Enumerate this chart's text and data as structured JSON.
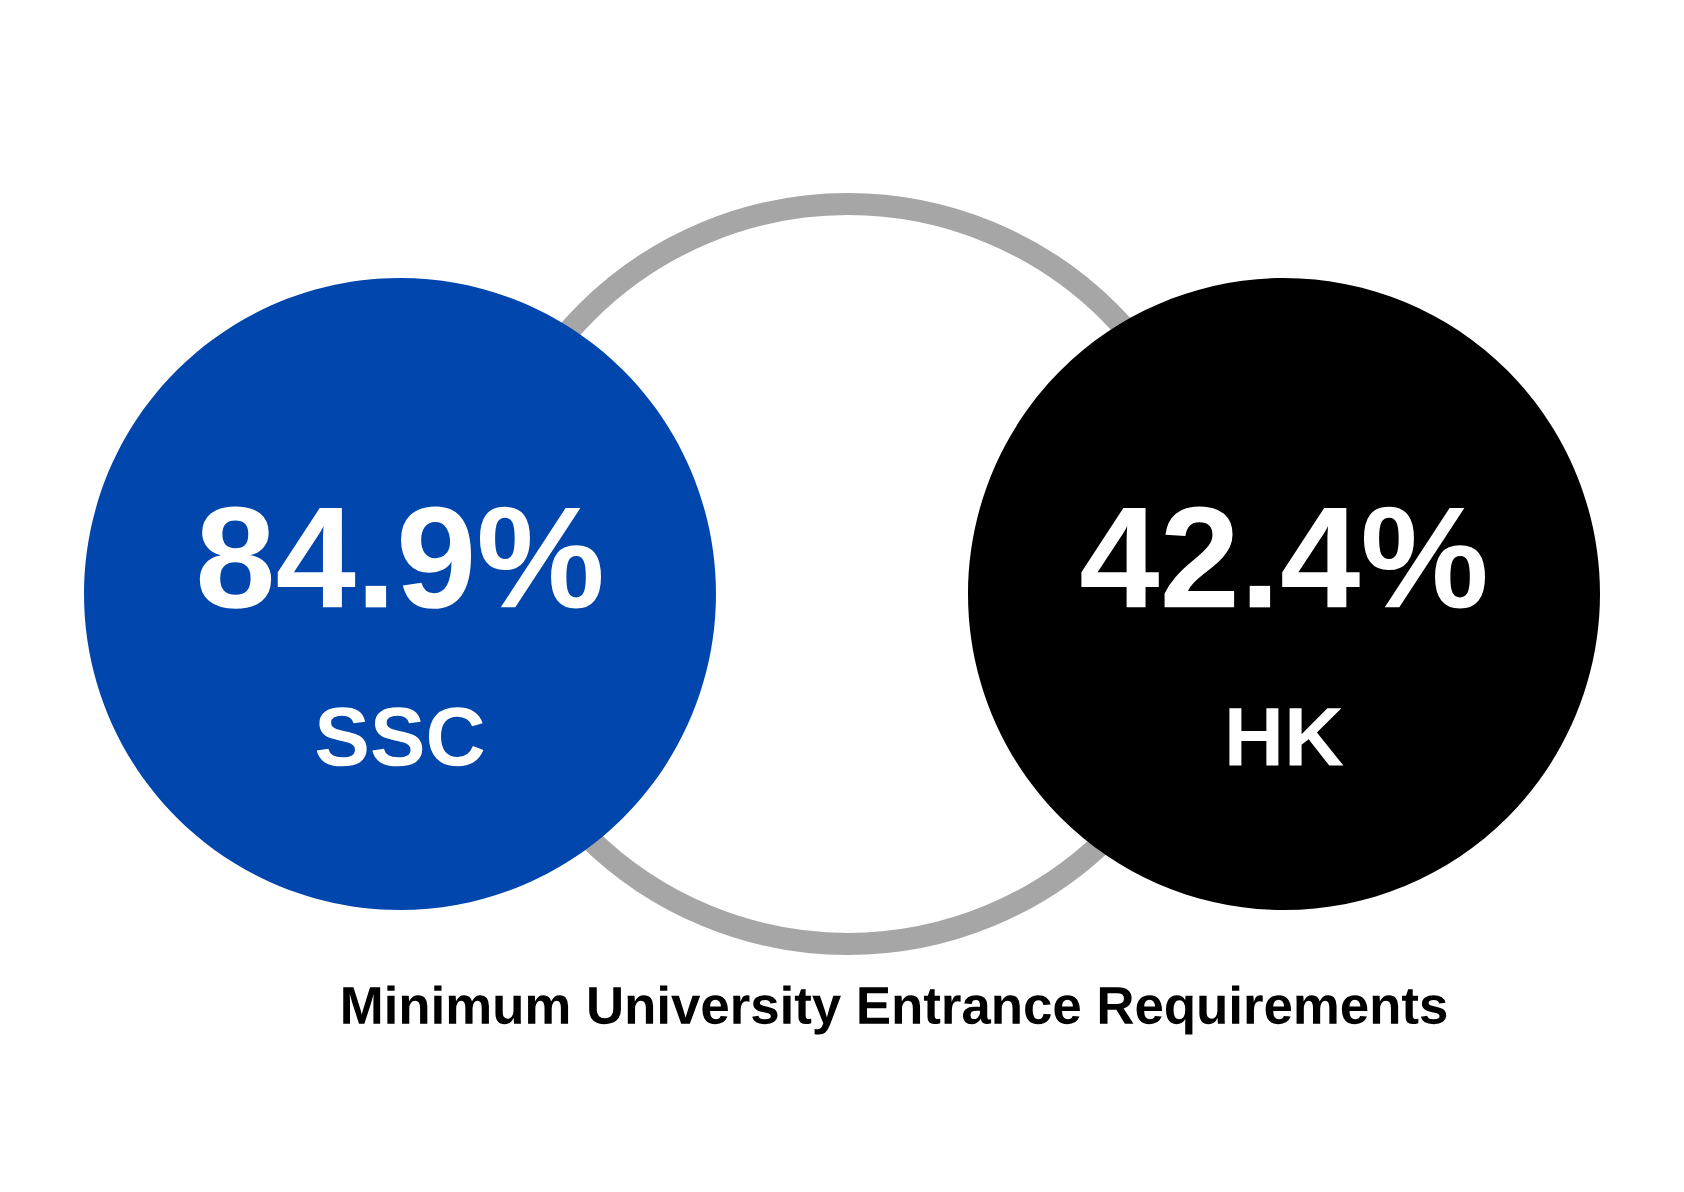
{
  "chart_data": {
    "type": "other",
    "title": "Minimum University Entrance Requirements",
    "categories": [
      "SSC",
      "HK"
    ],
    "values": [
      84.9,
      42.4
    ],
    "value_labels": [
      "84.9%",
      "42.4%"
    ],
    "colors": [
      "#0046ad",
      "#000000"
    ]
  }
}
